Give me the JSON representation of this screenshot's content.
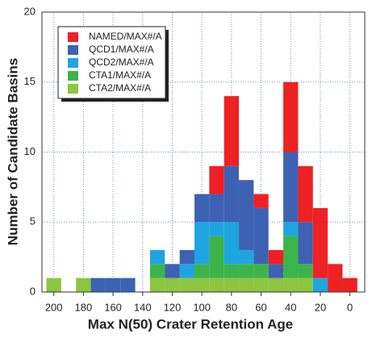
{
  "chart_data": {
    "type": "histogram",
    "xlabel": "Max N(50) Crater Retention Age",
    "ylabel": "Number of Candidate Basins",
    "bins": [
      205,
      195,
      185,
      175,
      165,
      155,
      145,
      135,
      125,
      115,
      105,
      95,
      85,
      75,
      65,
      55,
      45,
      35,
      25,
      15,
      5,
      -5
    ],
    "series": [
      {
        "name": "CTA2/MAX#/A",
        "color": "#8dc63f",
        "values": [
          1,
          0,
          1,
          0,
          0,
          0,
          0,
          1,
          1,
          1,
          1,
          1,
          1,
          1,
          1,
          1,
          1,
          1,
          0,
          0,
          0
        ]
      },
      {
        "name": "CTA1/MAX#/A",
        "color": "#3cb44a",
        "values": [
          0,
          0,
          0,
          0,
          0,
          0,
          0,
          1,
          0,
          0,
          1,
          3,
          1,
          1,
          1,
          0,
          3,
          1,
          0,
          0,
          0
        ]
      },
      {
        "name": "QCD2/MAX#/A",
        "color": "#1ea5e0",
        "values": [
          0,
          0,
          0,
          0,
          0,
          0,
          0,
          1,
          0,
          1,
          3,
          1,
          3,
          1,
          0,
          0,
          1,
          0,
          1,
          0,
          0
        ]
      },
      {
        "name": "QCD1/MAX#/A",
        "color": "#3d62b3",
        "values": [
          0,
          0,
          0,
          1,
          1,
          1,
          0,
          0,
          1,
          1,
          2,
          2,
          4,
          5,
          4,
          1,
          5,
          3,
          0,
          0,
          0
        ]
      },
      {
        "name": "NAMED/MAX#/A",
        "color": "#ee2124",
        "values": [
          0,
          0,
          0,
          0,
          0,
          0,
          0,
          0,
          0,
          0,
          0,
          2,
          5,
          0,
          1,
          1,
          5,
          4,
          5,
          2,
          1
        ]
      }
    ],
    "xlim": [
      208,
      -10
    ],
    "xticks": [
      200,
      180,
      160,
      140,
      120,
      100,
      80,
      60,
      40,
      20,
      0
    ],
    "ylim": [
      0,
      20
    ],
    "yticks": [
      0,
      5,
      10,
      15,
      20
    ],
    "grid": true,
    "legend": "upper left"
  }
}
